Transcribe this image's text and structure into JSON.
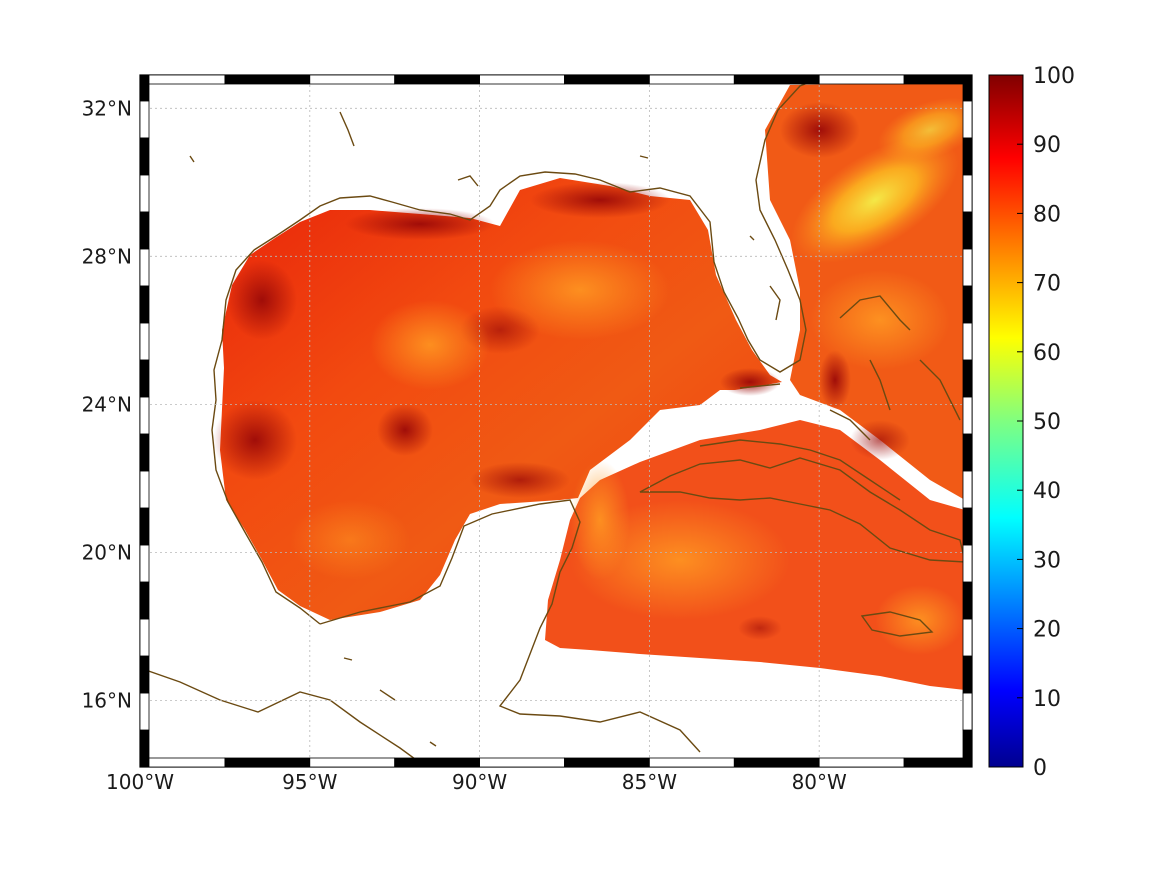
{
  "map": {
    "lon_range": [
      -100,
      -75.5
    ],
    "lat_range": [
      14.2,
      32.9
    ],
    "lon_ticks": [
      {
        "value": -100,
        "label": "100°W"
      },
      {
        "value": -95,
        "label": "95°W"
      },
      {
        "value": -90,
        "label": "90°W"
      },
      {
        "value": -85,
        "label": "85°W"
      },
      {
        "value": -80,
        "label": "80°W"
      }
    ],
    "lat_ticks": [
      {
        "value": 32,
        "label": "32°N"
      },
      {
        "value": 28,
        "label": "28°N"
      },
      {
        "value": 24,
        "label": "24°N"
      },
      {
        "value": 20,
        "label": "20°N"
      },
      {
        "value": 16,
        "label": "16°N"
      }
    ],
    "grid": true,
    "coastline_color": "#6b4a12",
    "land_color": "#ffffff",
    "field_colormap": "jet",
    "field_dominant_range": [
      75,
      95
    ]
  },
  "colorbar": {
    "min": 0,
    "max": 100,
    "ticks": [
      {
        "value": 0,
        "label": "0"
      },
      {
        "value": 10,
        "label": "10"
      },
      {
        "value": 20,
        "label": "20"
      },
      {
        "value": 30,
        "label": "30"
      },
      {
        "value": 40,
        "label": "40"
      },
      {
        "value": 50,
        "label": "50"
      },
      {
        "value": 60,
        "label": "60"
      },
      {
        "value": 70,
        "label": "70"
      },
      {
        "value": 80,
        "label": "80"
      },
      {
        "value": 90,
        "label": "90"
      },
      {
        "value": 100,
        "label": "100"
      }
    ],
    "colors": [
      "#00008f",
      "#0000ff",
      "#0080ff",
      "#00ffff",
      "#80ff80",
      "#ffff00",
      "#ff8000",
      "#ff0000",
      "#800000"
    ]
  }
}
